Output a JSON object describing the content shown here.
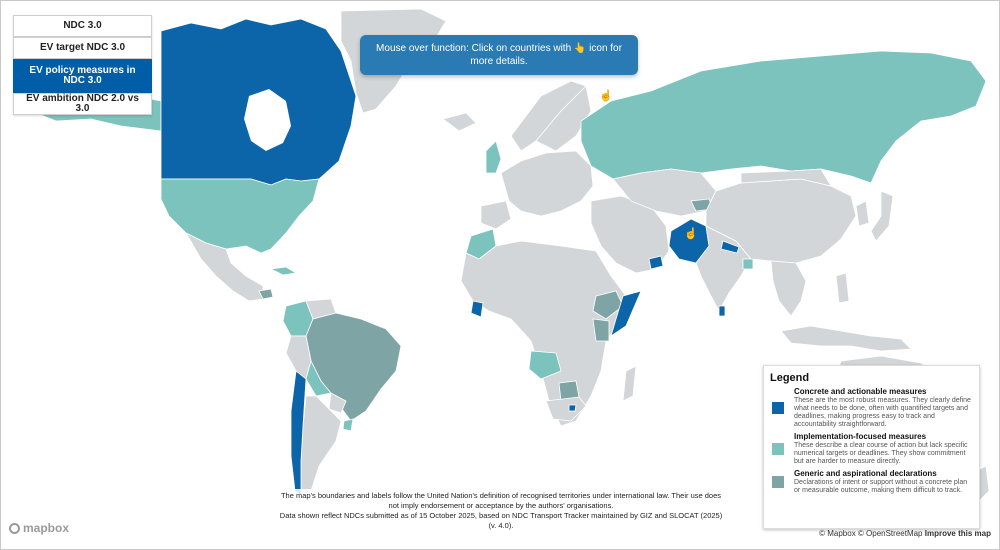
{
  "tabs": [
    {
      "label": "NDC 3.0",
      "active": false
    },
    {
      "label": "EV target NDC 3.0",
      "active": false
    },
    {
      "label": "EV policy measures in NDC 3.0",
      "active": true
    },
    {
      "label": "EV ambition NDC 2.0 vs 3.0",
      "active": false
    }
  ],
  "info_box": {
    "text_before_icon": "Mouse over function: Click on countries with",
    "icon": "pointing-hand-icon",
    "text_after_icon": "icon for more details."
  },
  "colors": {
    "concrete": "#0b65a8",
    "implementation": "#7bc3bc",
    "generic": "#7ea4a6",
    "no_data": "#d3d6d8",
    "water": "#ffffff"
  },
  "legend": {
    "title": "Legend",
    "items": [
      {
        "key": "concrete",
        "heading": "Concrete and actionable measures",
        "description": "These are the most robust measures. They clearly define what needs to be done, often with quantified targets and deadlines, making progress easy to track and accountability straightforward."
      },
      {
        "key": "implementation",
        "heading": "Implementation-focused measures",
        "description": "These describe a clear course of action but lack specific numerical targets or deadlines. They show commitment but are harder to measure directly."
      },
      {
        "key": "generic",
        "heading": "Generic and aspirational declarations",
        "description": "Declarations of intent or support without a concrete plan or measurable outcome, making them difficult to track."
      }
    ]
  },
  "disclaimer": {
    "line1": "The map's boundaries and labels follow the United Nation's definition of recognised territories under international law. Their use does not imply endorsement or acceptance by the authors' organisations.",
    "line2": "Data shown reflect NDCs submitted as of 15 October 2025, based on NDC Transport Tracker maintained by GIZ and SLOCAT (2025) (v. 4.0)."
  },
  "map": {
    "logo_text": "mapbox",
    "attribution": "© Mapbox © OpenStreetMap",
    "improve_link": "Improve this map"
  }
}
